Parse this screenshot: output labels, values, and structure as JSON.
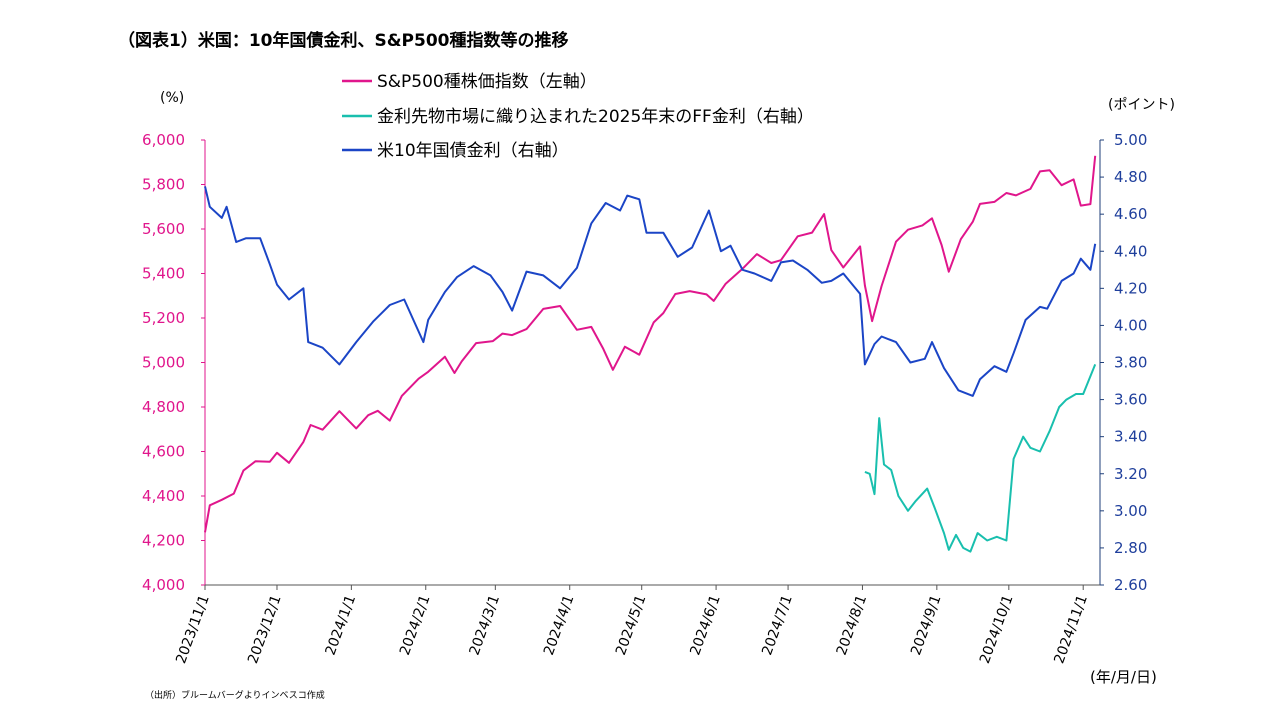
{
  "title": "（図表1）米国：10年国債金利、S&P500種指数等の推移",
  "source": "（出所）ブルームバーグよりインベスコ作成",
  "chart_data": {
    "type": "line",
    "left_unit": "(%)",
    "right_unit": "(ポイント)",
    "x_unit": "(年/月/日)",
    "x_ticks": [
      "2023/11/1",
      "2023/12/1",
      "2024/1/1",
      "2024/2/1",
      "2024/3/1",
      "2024/4/1",
      "2024/5/1",
      "2024/6/1",
      "2024/7/1",
      "2024/8/1",
      "2024/9/1",
      "2024/10/1",
      "2024/11/1"
    ],
    "x_range": [
      "2023-11-01",
      "2024-11-08"
    ],
    "y_left": {
      "range": [
        4000,
        6000
      ],
      "ticks": [
        "4,000",
        "4,200",
        "4,400",
        "4,600",
        "4,800",
        "5,000",
        "5,200",
        "5,400",
        "5,600",
        "5,800",
        "6,000"
      ],
      "color": "#e0168c"
    },
    "y_right": {
      "range": [
        2.6,
        5.0
      ],
      "ticks": [
        "2.60",
        "2.80",
        "3.00",
        "3.20",
        "3.40",
        "3.60",
        "3.80",
        "4.00",
        "4.20",
        "4.40",
        "4.60",
        "4.80",
        "5.00"
      ],
      "color": "#1f3f9c"
    },
    "legend_position": "top-center",
    "grid": false,
    "series": [
      {
        "name": "S&P500種株価指数（左軸）",
        "axis": "left",
        "color": "#e0168c",
        "points": [
          [
            "2023-11-01",
            4237
          ],
          [
            "2023-11-03",
            4358
          ],
          [
            "2023-11-08",
            4383
          ],
          [
            "2023-11-13",
            4411
          ],
          [
            "2023-11-17",
            4514
          ],
          [
            "2023-11-22",
            4556
          ],
          [
            "2023-11-28",
            4554
          ],
          [
            "2023-12-01",
            4594
          ],
          [
            "2023-12-06",
            4549
          ],
          [
            "2023-12-12",
            4643
          ],
          [
            "2023-12-15",
            4719
          ],
          [
            "2023-12-20",
            4698
          ],
          [
            "2023-12-27",
            4781
          ],
          [
            "2024-01-03",
            4704
          ],
          [
            "2024-01-08",
            4763
          ],
          [
            "2024-01-12",
            4783
          ],
          [
            "2024-01-17",
            4739
          ],
          [
            "2024-01-22",
            4850
          ],
          [
            "2024-01-29",
            4927
          ],
          [
            "2024-02-02",
            4958
          ],
          [
            "2024-02-09",
            5026
          ],
          [
            "2024-02-13",
            4953
          ],
          [
            "2024-02-16",
            5005
          ],
          [
            "2024-02-22",
            5087
          ],
          [
            "2024-02-29",
            5096
          ],
          [
            "2024-03-04",
            5130
          ],
          [
            "2024-03-08",
            5123
          ],
          [
            "2024-03-14",
            5150
          ],
          [
            "2024-03-21",
            5241
          ],
          [
            "2024-03-28",
            5254
          ],
          [
            "2024-04-04",
            5147
          ],
          [
            "2024-04-10",
            5160
          ],
          [
            "2024-04-15",
            5061
          ],
          [
            "2024-04-19",
            4967
          ],
          [
            "2024-04-24",
            5071
          ],
          [
            "2024-04-30",
            5035
          ],
          [
            "2024-05-06",
            5180
          ],
          [
            "2024-05-10",
            5222
          ],
          [
            "2024-05-15",
            5308
          ],
          [
            "2024-05-21",
            5321
          ],
          [
            "2024-05-28",
            5306
          ],
          [
            "2024-05-31",
            5277
          ],
          [
            "2024-06-05",
            5354
          ],
          [
            "2024-06-12",
            5421
          ],
          [
            "2024-06-18",
            5487
          ],
          [
            "2024-06-24",
            5447
          ],
          [
            "2024-06-28",
            5460
          ],
          [
            "2024-07-05",
            5567
          ],
          [
            "2024-07-11",
            5584
          ],
          [
            "2024-07-16",
            5667
          ],
          [
            "2024-07-19",
            5505
          ],
          [
            "2024-07-24",
            5427
          ],
          [
            "2024-07-31",
            5522
          ],
          [
            "2024-08-02",
            5346
          ],
          [
            "2024-08-05",
            5186
          ],
          [
            "2024-08-09",
            5344
          ],
          [
            "2024-08-15",
            5543
          ],
          [
            "2024-08-20",
            5597
          ],
          [
            "2024-08-26",
            5616
          ],
          [
            "2024-08-30",
            5648
          ],
          [
            "2024-09-03",
            5528
          ],
          [
            "2024-09-06",
            5408
          ],
          [
            "2024-09-11",
            5554
          ],
          [
            "2024-09-16",
            5633
          ],
          [
            "2024-09-19",
            5713
          ],
          [
            "2024-09-25",
            5722
          ],
          [
            "2024-09-30",
            5762
          ],
          [
            "2024-10-04",
            5751
          ],
          [
            "2024-10-10",
            5780
          ],
          [
            "2024-10-14",
            5859
          ],
          [
            "2024-10-18",
            5864
          ],
          [
            "2024-10-23",
            5797
          ],
          [
            "2024-10-28",
            5823
          ],
          [
            "2024-10-31",
            5705
          ],
          [
            "2024-11-04",
            5712
          ],
          [
            "2024-11-06",
            5929
          ]
        ]
      },
      {
        "name": "金利先物市場に織り込まれた2025年末のFF金利（右軸）",
        "axis": "right",
        "color": "#19bfae",
        "points": [
          [
            "2024-08-02",
            3.21
          ],
          [
            "2024-08-04",
            3.2
          ],
          [
            "2024-08-06",
            3.09
          ],
          [
            "2024-08-08",
            3.5
          ],
          [
            "2024-08-10",
            3.25
          ],
          [
            "2024-08-13",
            3.22
          ],
          [
            "2024-08-16",
            3.08
          ],
          [
            "2024-08-20",
            3.0
          ],
          [
            "2024-08-23",
            3.05
          ],
          [
            "2024-08-28",
            3.12
          ],
          [
            "2024-08-31",
            3.02
          ],
          [
            "2024-09-04",
            2.88
          ],
          [
            "2024-09-06",
            2.79
          ],
          [
            "2024-09-09",
            2.87
          ],
          [
            "2024-09-12",
            2.8
          ],
          [
            "2024-09-15",
            2.78
          ],
          [
            "2024-09-18",
            2.88
          ],
          [
            "2024-09-22",
            2.84
          ],
          [
            "2024-09-26",
            2.86
          ],
          [
            "2024-09-30",
            2.84
          ],
          [
            "2024-10-03",
            3.28
          ],
          [
            "2024-10-07",
            3.4
          ],
          [
            "2024-10-10",
            3.34
          ],
          [
            "2024-10-14",
            3.32
          ],
          [
            "2024-10-18",
            3.43
          ],
          [
            "2024-10-22",
            3.56
          ],
          [
            "2024-10-25",
            3.6
          ],
          [
            "2024-10-29",
            3.63
          ],
          [
            "2024-11-01",
            3.63
          ],
          [
            "2024-11-06",
            3.79
          ]
        ]
      },
      {
        "name": "米10年国債金利（右軸）",
        "axis": "right",
        "color": "#1b45c6",
        "points": [
          [
            "2023-11-01",
            4.75
          ],
          [
            "2023-11-03",
            4.64
          ],
          [
            "2023-11-08",
            4.58
          ],
          [
            "2023-11-10",
            4.64
          ],
          [
            "2023-11-14",
            4.45
          ],
          [
            "2023-11-18",
            4.47
          ],
          [
            "2023-11-24",
            4.47
          ],
          [
            "2023-11-28",
            4.33
          ],
          [
            "2023-12-01",
            4.22
          ],
          [
            "2023-12-06",
            4.14
          ],
          [
            "2023-12-12",
            4.2
          ],
          [
            "2023-12-14",
            3.91
          ],
          [
            "2023-12-20",
            3.88
          ],
          [
            "2023-12-27",
            3.79
          ],
          [
            "2024-01-03",
            3.91
          ],
          [
            "2024-01-10",
            4.02
          ],
          [
            "2024-01-17",
            4.11
          ],
          [
            "2024-01-23",
            4.14
          ],
          [
            "2024-01-31",
            3.91
          ],
          [
            "2024-02-02",
            4.03
          ],
          [
            "2024-02-09",
            4.18
          ],
          [
            "2024-02-14",
            4.26
          ],
          [
            "2024-02-21",
            4.32
          ],
          [
            "2024-02-28",
            4.27
          ],
          [
            "2024-03-04",
            4.18
          ],
          [
            "2024-03-08",
            4.08
          ],
          [
            "2024-03-14",
            4.29
          ],
          [
            "2024-03-21",
            4.27
          ],
          [
            "2024-03-28",
            4.2
          ],
          [
            "2024-04-04",
            4.31
          ],
          [
            "2024-04-10",
            4.55
          ],
          [
            "2024-04-16",
            4.66
          ],
          [
            "2024-04-22",
            4.62
          ],
          [
            "2024-04-25",
            4.7
          ],
          [
            "2024-04-30",
            4.68
          ],
          [
            "2024-05-03",
            4.5
          ],
          [
            "2024-05-10",
            4.5
          ],
          [
            "2024-05-16",
            4.37
          ],
          [
            "2024-05-22",
            4.42
          ],
          [
            "2024-05-29",
            4.62
          ],
          [
            "2024-06-03",
            4.4
          ],
          [
            "2024-06-07",
            4.43
          ],
          [
            "2024-06-12",
            4.3
          ],
          [
            "2024-06-17",
            4.28
          ],
          [
            "2024-06-24",
            4.24
          ],
          [
            "2024-06-28",
            4.34
          ],
          [
            "2024-07-03",
            4.35
          ],
          [
            "2024-07-09",
            4.3
          ],
          [
            "2024-07-15",
            4.23
          ],
          [
            "2024-07-19",
            4.24
          ],
          [
            "2024-07-24",
            4.28
          ],
          [
            "2024-07-31",
            4.17
          ],
          [
            "2024-08-02",
            3.79
          ],
          [
            "2024-08-06",
            3.9
          ],
          [
            "2024-08-09",
            3.94
          ],
          [
            "2024-08-15",
            3.91
          ],
          [
            "2024-08-21",
            3.8
          ],
          [
            "2024-08-27",
            3.82
          ],
          [
            "2024-08-30",
            3.91
          ],
          [
            "2024-09-04",
            3.77
          ],
          [
            "2024-09-10",
            3.65
          ],
          [
            "2024-09-16",
            3.62
          ],
          [
            "2024-09-19",
            3.71
          ],
          [
            "2024-09-25",
            3.78
          ],
          [
            "2024-09-30",
            3.75
          ],
          [
            "2024-10-03",
            3.85
          ],
          [
            "2024-10-08",
            4.03
          ],
          [
            "2024-10-14",
            4.1
          ],
          [
            "2024-10-17",
            4.09
          ],
          [
            "2024-10-23",
            4.24
          ],
          [
            "2024-10-28",
            4.28
          ],
          [
            "2024-10-31",
            4.36
          ],
          [
            "2024-11-04",
            4.3
          ],
          [
            "2024-11-06",
            4.44
          ]
        ]
      }
    ]
  }
}
